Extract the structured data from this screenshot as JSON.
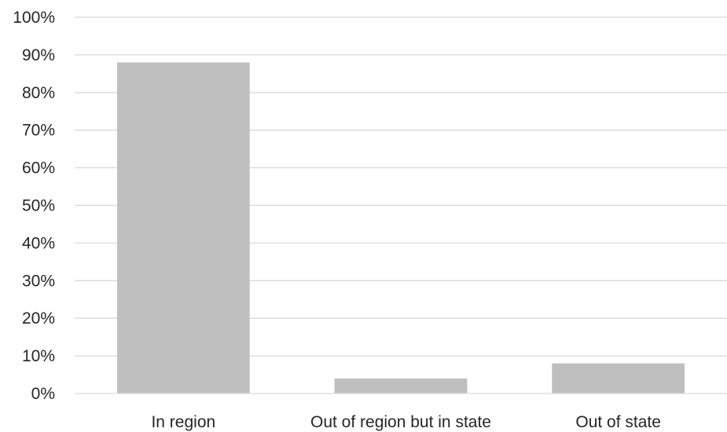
{
  "chart_data": {
    "type": "bar",
    "title": "",
    "xlabel": "",
    "ylabel": "",
    "categories": [
      "In region",
      "Out of region but in state",
      "Out of state"
    ],
    "values": [
      88,
      4,
      8
    ],
    "ylim": [
      0,
      100
    ],
    "y_ticks": [
      0,
      10,
      20,
      30,
      40,
      50,
      60,
      70,
      80,
      90,
      100
    ],
    "y_tick_labels": [
      "0%",
      "10%",
      "20%",
      "30%",
      "40%",
      "50%",
      "60%",
      "70%",
      "80%",
      "90%",
      "100%"
    ],
    "bar_color": "#bfbfbf",
    "grid": true,
    "legend": "none"
  }
}
